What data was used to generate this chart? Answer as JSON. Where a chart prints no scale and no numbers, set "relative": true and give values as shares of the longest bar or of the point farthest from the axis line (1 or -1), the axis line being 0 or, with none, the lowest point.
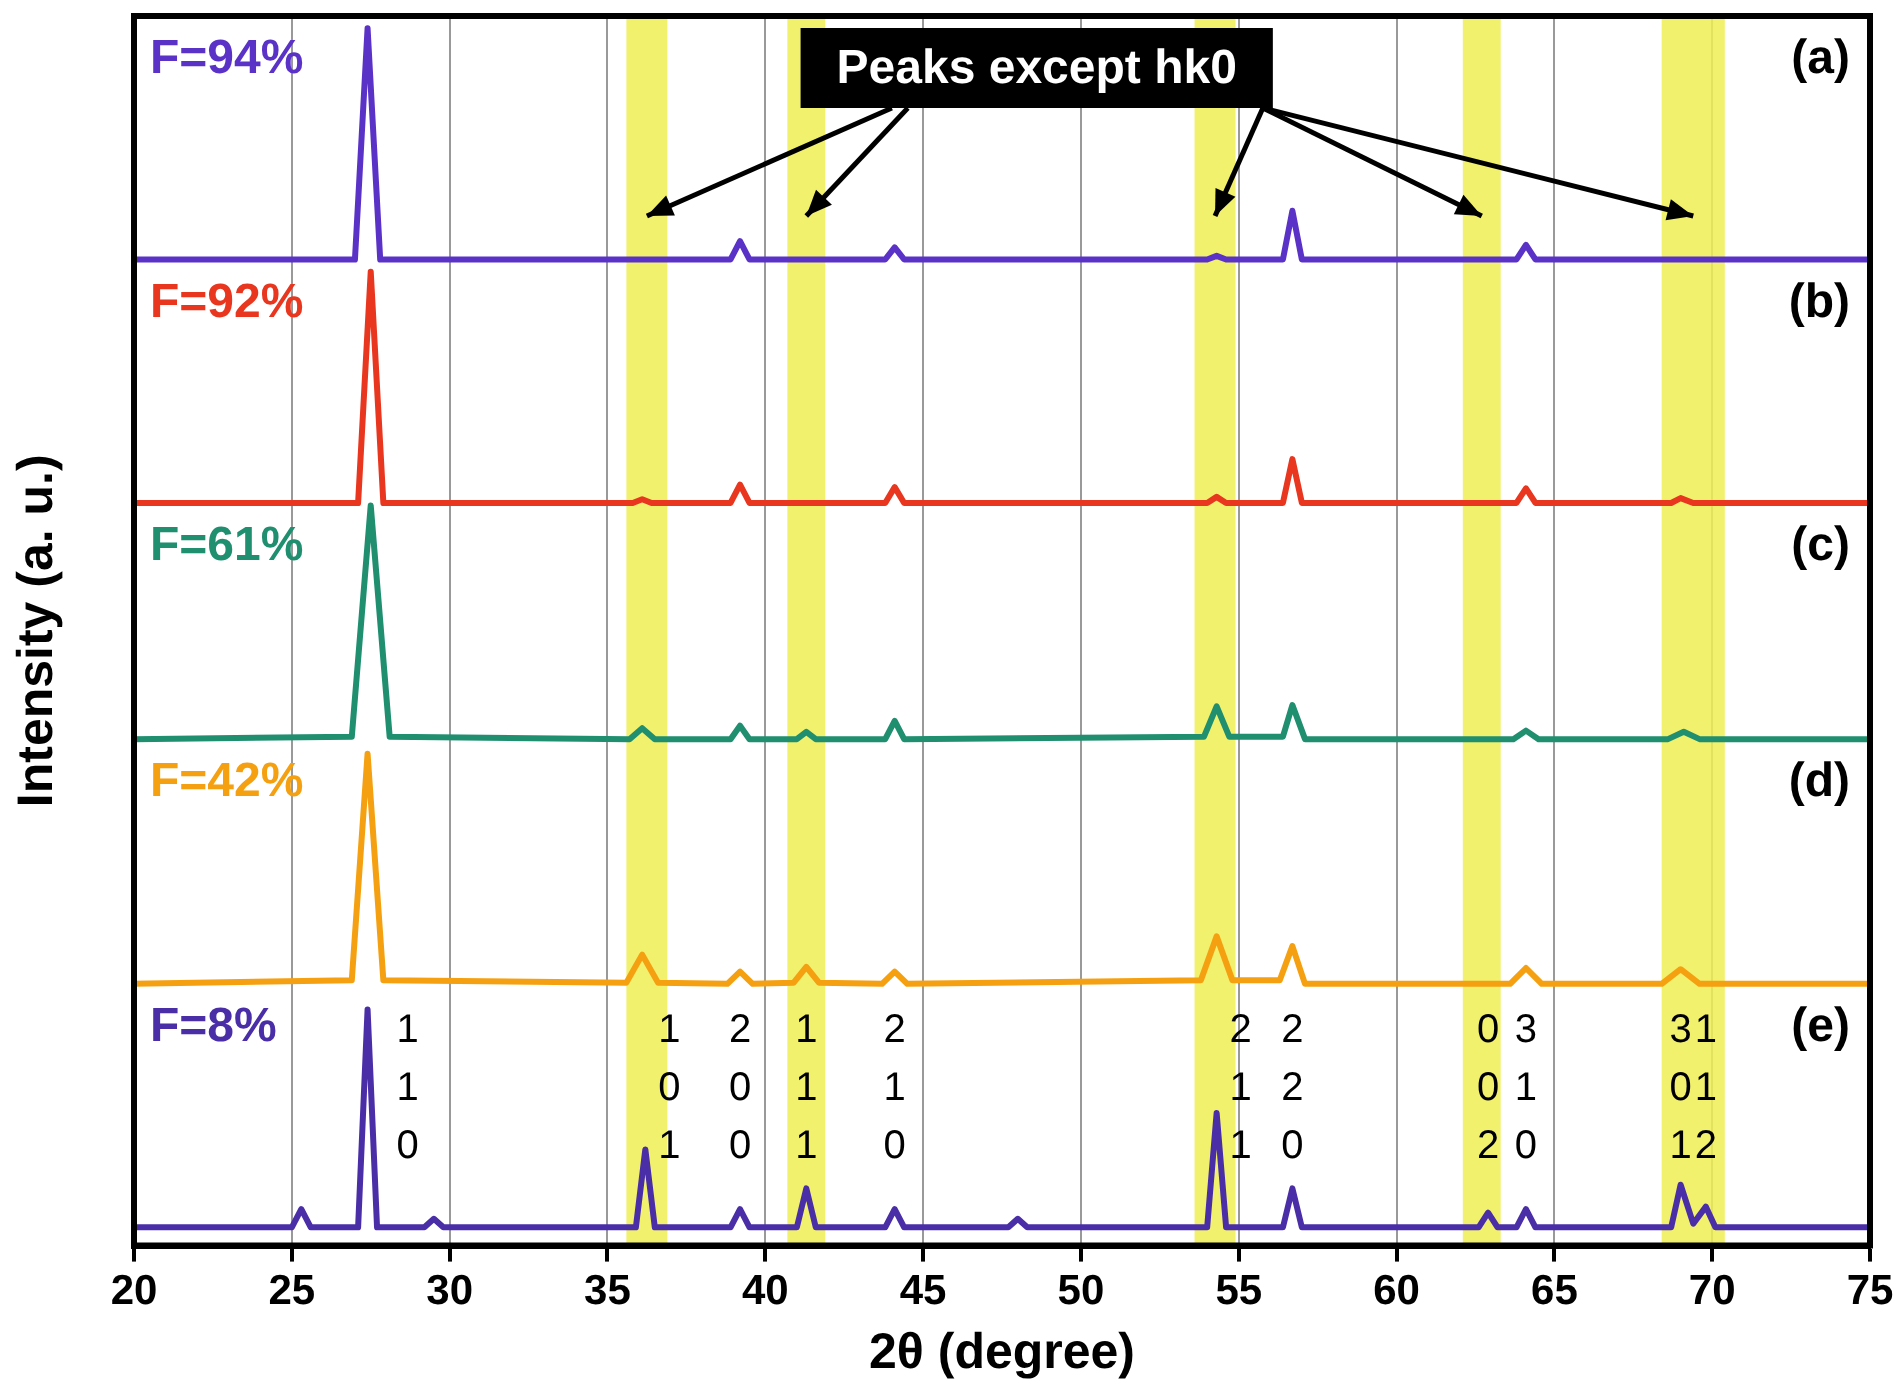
{
  "chart_data": {
    "type": "line",
    "relative": true,
    "xlabel": "2θ (degree)",
    "ylabel": "Intensity (a. u.)",
    "xlim": [
      20,
      75
    ],
    "xticks": [
      20,
      25,
      30,
      35,
      40,
      45,
      50,
      55,
      60,
      65,
      70,
      75
    ],
    "grid": "x",
    "series": [
      {
        "name": "F=94%",
        "color": "#5b32c8",
        "x": [
          20,
          27.0,
          27.4,
          27.8,
          38.9,
          39.2,
          39.5,
          43.8,
          44.1,
          44.4,
          54.0,
          54.3,
          54.6,
          56.4,
          56.7,
          57.0,
          63.8,
          64.1,
          64.4,
          75
        ],
        "values": [
          0.81,
          0.81,
          1.0,
          0.81,
          0.81,
          0.825,
          0.81,
          0.81,
          0.82,
          0.81,
          0.81,
          0.813,
          0.81,
          0.81,
          0.85,
          0.81,
          0.81,
          0.822,
          0.81,
          0.81
        ]
      },
      {
        "name": "F=92%",
        "color": "#e8361f",
        "x": [
          20,
          27.1,
          27.5,
          27.9,
          35.8,
          36.1,
          36.4,
          38.9,
          39.2,
          39.5,
          43.8,
          44.1,
          44.4,
          54.0,
          54.3,
          54.6,
          56.4,
          56.7,
          57.0,
          63.8,
          64.1,
          64.4,
          68.7,
          69.0,
          69.4,
          75
        ],
        "values": [
          0.61,
          0.61,
          0.8,
          0.61,
          0.61,
          0.613,
          0.61,
          0.61,
          0.625,
          0.61,
          0.61,
          0.623,
          0.61,
          0.61,
          0.615,
          0.61,
          0.61,
          0.646,
          0.61,
          0.61,
          0.622,
          0.61,
          0.61,
          0.614,
          0.61,
          0.61
        ]
      },
      {
        "name": "F=61%",
        "color": "#1f8f6f",
        "x": [
          20,
          26.9,
          27.5,
          28.1,
          35.7,
          36.1,
          36.5,
          38.9,
          39.2,
          39.5,
          41.0,
          41.3,
          41.6,
          43.8,
          44.1,
          44.4,
          53.9,
          54.3,
          54.7,
          56.4,
          56.7,
          57.1,
          63.7,
          64.1,
          64.5,
          68.6,
          69.1,
          69.6,
          75
        ],
        "values": [
          0.416,
          0.418,
          0.608,
          0.418,
          0.416,
          0.425,
          0.416,
          0.416,
          0.427,
          0.416,
          0.416,
          0.422,
          0.416,
          0.416,
          0.431,
          0.416,
          0.418,
          0.443,
          0.418,
          0.418,
          0.444,
          0.416,
          0.416,
          0.423,
          0.416,
          0.416,
          0.422,
          0.416,
          0.416
        ]
      },
      {
        "name": "F=42%",
        "color": "#f5a010",
        "x": [
          20,
          26.9,
          27.4,
          27.9,
          35.6,
          36.1,
          36.6,
          38.8,
          39.2,
          39.6,
          40.9,
          41.3,
          41.7,
          43.7,
          44.1,
          44.5,
          53.8,
          54.3,
          54.8,
          56.3,
          56.7,
          57.1,
          63.6,
          64.1,
          64.6,
          68.4,
          69.0,
          69.6,
          75
        ],
        "values": [
          0.215,
          0.218,
          0.404,
          0.218,
          0.216,
          0.239,
          0.216,
          0.215,
          0.225,
          0.215,
          0.216,
          0.229,
          0.216,
          0.215,
          0.225,
          0.215,
          0.218,
          0.254,
          0.218,
          0.218,
          0.246,
          0.215,
          0.215,
          0.228,
          0.215,
          0.215,
          0.227,
          0.215,
          0.215
        ]
      },
      {
        "name": "F=8%",
        "color": "#4a2ea8",
        "x": [
          20,
          25.0,
          25.3,
          25.6,
          27.1,
          27.4,
          27.7,
          29.2,
          29.5,
          29.8,
          35.9,
          36.2,
          36.5,
          38.9,
          39.2,
          39.5,
          41.0,
          41.3,
          41.6,
          43.8,
          44.1,
          44.4,
          47.7,
          48.0,
          48.3,
          54.0,
          54.3,
          54.6,
          56.4,
          56.7,
          57.0,
          62.6,
          62.9,
          63.2,
          63.8,
          64.1,
          64.4,
          68.7,
          69.0,
          69.4,
          69.8,
          70.1,
          75
        ],
        "values": [
          0.015,
          0.015,
          0.03,
          0.015,
          0.015,
          0.194,
          0.015,
          0.015,
          0.022,
          0.015,
          0.015,
          0.079,
          0.015,
          0.015,
          0.03,
          0.015,
          0.015,
          0.047,
          0.015,
          0.015,
          0.03,
          0.015,
          0.015,
          0.022,
          0.015,
          0.015,
          0.109,
          0.015,
          0.015,
          0.047,
          0.015,
          0.015,
          0.027,
          0.015,
          0.015,
          0.03,
          0.015,
          0.015,
          0.05,
          0.018,
          0.032,
          0.015,
          0.015
        ]
      }
    ],
    "bands": [
      {
        "axis": "x",
        "from": 35.6,
        "to": 36.9,
        "color": "#eeee55"
      },
      {
        "axis": "x",
        "from": 40.7,
        "to": 41.9,
        "color": "#eeee55"
      },
      {
        "axis": "x",
        "from": 53.6,
        "to": 54.9,
        "color": "#eeee55"
      },
      {
        "axis": "x",
        "from": 62.1,
        "to": 63.3,
        "color": "#eeee55"
      },
      {
        "axis": "x",
        "from": 68.4,
        "to": 70.4,
        "color": "#eeee55"
      }
    ],
    "annotations": [
      "Peaks except hk0",
      "(a)",
      "(b)",
      "(c)",
      "(d)",
      "(e)",
      {
        "text": "110",
        "x": 27.4,
        "y": 0.194
      },
      {
        "text": "101",
        "x": 36.2,
        "y": 0.079
      },
      {
        "text": "200",
        "x": 39.2,
        "y": 0.03
      },
      {
        "text": "111",
        "x": 41.3,
        "y": 0.047
      },
      {
        "text": "210",
        "x": 44.1,
        "y": 0.03
      },
      {
        "text": "211",
        "x": 54.3,
        "y": 0.109
      },
      {
        "text": "220",
        "x": 56.7,
        "y": 0.047
      },
      {
        "text": "002",
        "x": 62.9,
        "y": 0.027
      },
      {
        "text": "310",
        "x": 64.1,
        "y": 0.03
      },
      {
        "text": "301",
        "x": 69.0,
        "y": 0.05
      },
      {
        "text": "112",
        "x": 69.8,
        "y": 0.032
      }
    ]
  }
}
